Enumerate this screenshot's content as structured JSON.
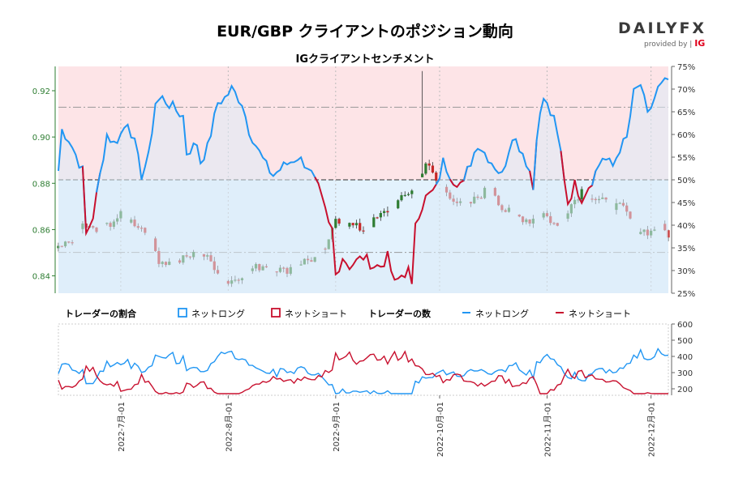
{
  "header": {
    "title": "EUR/GBP クライアントのポジション動向",
    "subtitle": "IGクライアントセンチメント"
  },
  "logo": {
    "brand_left": "DAILY",
    "brand_right": "FX",
    "provided_by": "provided by",
    "ig": "IG"
  },
  "colors": {
    "long": "#2196f3",
    "short": "#c8102e",
    "long_fill": "#e3f2fd",
    "short_fill": "#fde4e7",
    "price_up": "#2e7d32",
    "price_down": "#c62828",
    "price_axis": "#2e7d32"
  },
  "chart_data": [
    {
      "type": "candlestick_with_sentiment",
      "title": "IGクライアントセンチメント",
      "price_axis": {
        "ylim": [
          0.8325,
          0.9305
        ],
        "ticks": [
          "0.84",
          "0.86",
          "0.88",
          "0.90",
          "0.92"
        ]
      },
      "sentiment_axis": {
        "ylim": [
          25,
          75
        ],
        "ticks": [
          "25%",
          "30%",
          "35%",
          "40%",
          "45%",
          "50%",
          "55%",
          "60%",
          "65%",
          "70%",
          "75%"
        ]
      },
      "reference_lines": [
        50,
        34,
        66
      ],
      "date_range": [
        "2022-06-13",
        "2022-12-06"
      ],
      "net_long_pct_knots": [
        [
          "2022-06-13",
          52
        ],
        [
          "2022-06-14",
          61
        ],
        [
          "2022-06-16",
          59
        ],
        [
          "2022-06-20",
          52
        ],
        [
          "2022-06-21",
          38
        ],
        [
          "2022-06-23",
          42
        ],
        [
          "2022-06-27",
          60
        ],
        [
          "2022-06-29",
          58
        ],
        [
          "2022-07-01",
          60
        ],
        [
          "2022-07-03",
          63
        ],
        [
          "2022-07-05",
          58
        ],
        [
          "2022-07-07",
          51
        ],
        [
          "2022-07-09",
          55
        ],
        [
          "2022-07-11",
          67
        ],
        [
          "2022-07-13",
          68
        ],
        [
          "2022-07-16",
          66
        ],
        [
          "2022-07-19",
          64
        ],
        [
          "2022-07-20",
          56
        ],
        [
          "2022-07-23",
          58
        ],
        [
          "2022-07-24",
          54
        ],
        [
          "2022-07-26",
          57
        ],
        [
          "2022-07-29",
          67
        ],
        [
          "2022-07-31",
          68
        ],
        [
          "2022-08-02",
          70
        ],
        [
          "2022-08-05",
          67
        ],
        [
          "2022-08-07",
          61
        ],
        [
          "2022-08-10",
          56
        ],
        [
          "2022-08-12",
          53
        ],
        [
          "2022-08-14",
          51
        ],
        [
          "2022-08-17",
          53
        ],
        [
          "2022-08-21",
          55
        ],
        [
          "2022-08-24",
          53
        ],
        [
          "2022-08-27",
          48
        ],
        [
          "2022-08-29",
          43
        ],
        [
          "2022-08-30",
          40
        ],
        [
          "2022-08-31",
          39
        ],
        [
          "2022-09-01",
          29
        ]
      ],
      "net_long_pct_tail_knots": [
        [
          "2022-09-24",
          41
        ],
        [
          "2022-09-27",
          46
        ],
        [
          "2022-09-30",
          48
        ],
        [
          "2022-10-02",
          54
        ],
        [
          "2022-10-05",
          50
        ],
        [
          "2022-10-08",
          49
        ],
        [
          "2022-10-09",
          52
        ],
        [
          "2022-10-12",
          58
        ],
        [
          "2022-10-15",
          55
        ],
        [
          "2022-10-19",
          51
        ],
        [
          "2022-10-22",
          60
        ],
        [
          "2022-10-25",
          56
        ],
        [
          "2022-10-27",
          52
        ],
        [
          "2022-10-28",
          48
        ],
        [
          "2022-10-29",
          60
        ],
        [
          "2022-10-31",
          68
        ],
        [
          "2022-11-03",
          63
        ],
        [
          "2022-11-05",
          56
        ],
        [
          "2022-11-07",
          45
        ],
        [
          "2022-11-09",
          49
        ],
        [
          "2022-11-11",
          46
        ],
        [
          "2022-11-14",
          50
        ],
        [
          "2022-11-17",
          55
        ],
        [
          "2022-11-20",
          53
        ],
        [
          "2022-11-22",
          57
        ],
        [
          "2022-11-24",
          59
        ],
        [
          "2022-11-26",
          69
        ],
        [
          "2022-11-28",
          71
        ],
        [
          "2022-11-30",
          64
        ],
        [
          "2022-12-03",
          70
        ],
        [
          "2022-12-06",
          72
        ]
      ],
      "ohlc_knots": [
        [
          "2022-06-13",
          0.851
        ],
        [
          "2022-06-17",
          0.856
        ],
        [
          "2022-06-20",
          0.862
        ],
        [
          "2022-06-24",
          0.859
        ],
        [
          "2022-06-28",
          0.863
        ],
        [
          "2022-07-01",
          0.866
        ],
        [
          "2022-07-06",
          0.862
        ],
        [
          "2022-07-09",
          0.858
        ],
        [
          "2022-07-12",
          0.847
        ],
        [
          "2022-07-16",
          0.845
        ],
        [
          "2022-07-20",
          0.848
        ],
        [
          "2022-07-24",
          0.85
        ],
        [
          "2022-07-27",
          0.846
        ],
        [
          "2022-08-01",
          0.837
        ],
        [
          "2022-08-04",
          0.84
        ],
        [
          "2022-08-08",
          0.843
        ],
        [
          "2022-08-12",
          0.845
        ],
        [
          "2022-08-17",
          0.842
        ],
        [
          "2022-08-22",
          0.846
        ],
        [
          "2022-08-27",
          0.848
        ],
        [
          "2022-08-30",
          0.854
        ],
        [
          "2022-09-01",
          0.865
        ],
        [
          "2022-09-05",
          0.862
        ],
        [
          "2022-09-09",
          0.86
        ],
        [
          "2022-09-14",
          0.866
        ],
        [
          "2022-09-20",
          0.873
        ],
        [
          "2022-09-24",
          0.879
        ],
        [
          "2022-09-27",
          0.889
        ],
        [
          "2022-09-30",
          0.881
        ],
        [
          "2022-10-04",
          0.875
        ],
        [
          "2022-10-08",
          0.869
        ],
        [
          "2022-10-12",
          0.874
        ],
        [
          "2022-10-16",
          0.879
        ],
        [
          "2022-10-19",
          0.869
        ],
        [
          "2022-10-23",
          0.866
        ],
        [
          "2022-10-27",
          0.864
        ],
        [
          "2022-10-31",
          0.867
        ],
        [
          "2022-11-04",
          0.861
        ],
        [
          "2022-11-07",
          0.869
        ],
        [
          "2022-11-11",
          0.877
        ],
        [
          "2022-11-15",
          0.873
        ],
        [
          "2022-11-19",
          0.871
        ],
        [
          "2022-11-23",
          0.869
        ],
        [
          "2022-11-27",
          0.86
        ],
        [
          "2022-12-01",
          0.859
        ],
        [
          "2022-12-03",
          0.862
        ],
        [
          "2022-12-06",
          0.858
        ]
      ],
      "spike": {
        "date": "2022-09-26",
        "high": 0.9285
      },
      "month_ticks": [
        [
          "2022-07-01",
          "2022-7月-01"
        ],
        [
          "2022-08-01",
          "2022-8月-01"
        ],
        [
          "2022-09-01",
          "2022-9月-01"
        ],
        [
          "2022-10-01",
          "2022-10月-01"
        ],
        [
          "2022-11-01",
          "2022-11月-01"
        ],
        [
          "2022-12-01",
          "2022-12月-01"
        ]
      ]
    },
    {
      "type": "line",
      "title": "トレーダーの数",
      "ylim": [
        160,
        600
      ],
      "ticks": [
        "200",
        "300",
        "400",
        "500",
        "600"
      ],
      "series": [
        {
          "name": "ネットロング",
          "key": "long_count"
        },
        {
          "name": "ネットショート",
          "key": "short_count"
        }
      ]
    }
  ],
  "legend": {
    "ratio_label": "トレーダーの割合",
    "count_label": "トレーダーの数",
    "net_long": "ネットロング",
    "net_short": "ネットショート"
  }
}
